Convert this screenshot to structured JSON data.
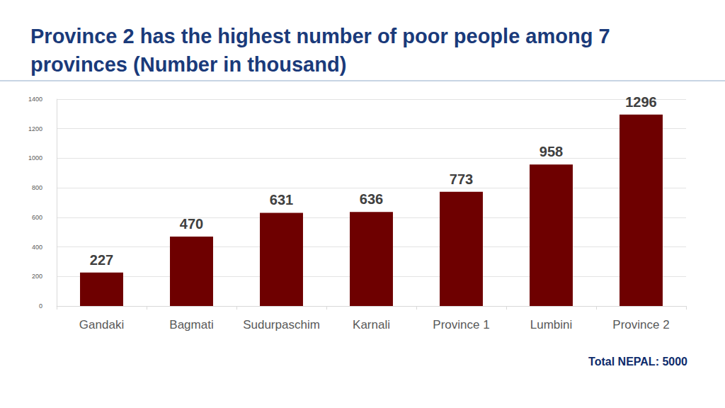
{
  "chart_data": {
    "type": "bar",
    "title": "Province 2 has the highest number of poor people among 7 provinces (Number in thousand)",
    "categories": [
      "Gandaki",
      "Bagmati",
      "Sudurpaschim",
      "Karnali",
      "Province 1",
      "Lumbini",
      "Province 2"
    ],
    "values": [
      227,
      470,
      631,
      636,
      773,
      958,
      1296
    ],
    "color": "#6e0000",
    "ylim": [
      0,
      1400
    ],
    "yticks": [
      0,
      200,
      400,
      600,
      800,
      1000,
      1200,
      1400
    ],
    "grid": true,
    "data_labels": true,
    "annotation": "Total NEPAL: 5000"
  }
}
